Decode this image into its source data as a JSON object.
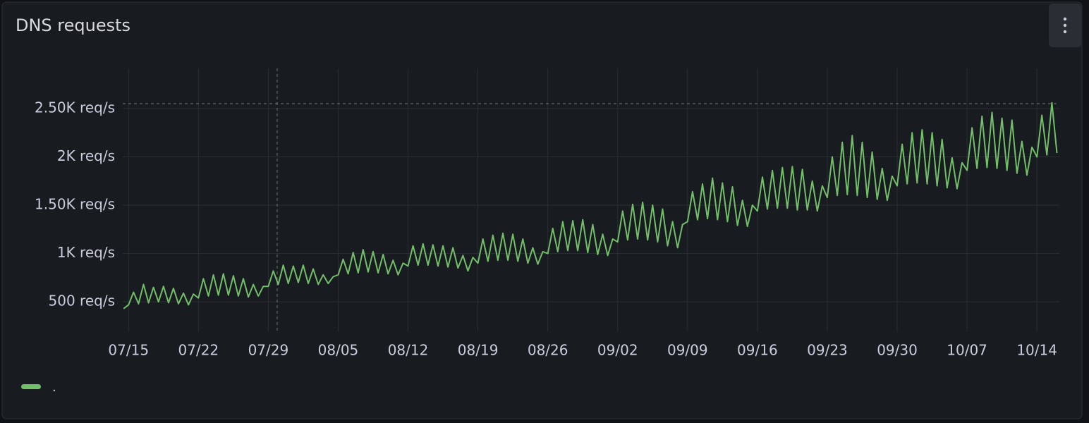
{
  "chart_data": {
    "type": "line",
    "title": "DNS requests",
    "x": [
      "07/14 12:00",
      "07/15 00:00",
      "07/15 12:00",
      "07/16 00:00",
      "07/16 12:00",
      "07/17 00:00",
      "07/17 12:00",
      "07/18 00:00",
      "07/18 12:00",
      "07/19 00:00",
      "07/19 12:00",
      "07/20 00:00",
      "07/20 12:00",
      "07/21 00:00",
      "07/21 12:00",
      "07/22 00:00",
      "07/22 12:00",
      "07/23 00:00",
      "07/23 12:00",
      "07/24 00:00",
      "07/24 12:00",
      "07/25 00:00",
      "07/25 12:00",
      "07/26 00:00",
      "07/26 12:00",
      "07/27 00:00",
      "07/27 12:00",
      "07/28 00:00",
      "07/28 12:00",
      "07/29 00:00",
      "07/29 12:00",
      "07/30 00:00",
      "07/30 12:00",
      "07/31 00:00",
      "07/31 12:00",
      "08/01 00:00",
      "08/01 12:00",
      "08/02 00:00",
      "08/02 12:00",
      "08/03 00:00",
      "08/03 12:00",
      "08/04 00:00",
      "08/04 12:00",
      "08/05 00:00",
      "08/05 12:00",
      "08/06 00:00",
      "08/06 12:00",
      "08/07 00:00",
      "08/07 12:00",
      "08/08 00:00",
      "08/08 12:00",
      "08/09 00:00",
      "08/09 12:00",
      "08/10 00:00",
      "08/10 12:00",
      "08/11 00:00",
      "08/11 12:00",
      "08/12 00:00",
      "08/12 12:00",
      "08/13 00:00",
      "08/13 12:00",
      "08/14 00:00",
      "08/14 12:00",
      "08/15 00:00",
      "08/15 12:00",
      "08/16 00:00",
      "08/16 12:00",
      "08/17 00:00",
      "08/17 12:00",
      "08/18 00:00",
      "08/18 12:00",
      "08/19 00:00",
      "08/19 12:00",
      "08/20 00:00",
      "08/20 12:00",
      "08/21 00:00",
      "08/21 12:00",
      "08/22 00:00",
      "08/22 12:00",
      "08/23 00:00",
      "08/23 12:00",
      "08/24 00:00",
      "08/24 12:00",
      "08/25 00:00",
      "08/25 12:00",
      "08/26 00:00",
      "08/26 12:00",
      "08/27 00:00",
      "08/27 12:00",
      "08/28 00:00",
      "08/28 12:00",
      "08/29 00:00",
      "08/29 12:00",
      "08/30 00:00",
      "08/30 12:00",
      "08/31 00:00",
      "08/31 12:00",
      "09/01 00:00",
      "09/01 12:00",
      "09/02 00:00",
      "09/02 12:00",
      "09/03 00:00",
      "09/03 12:00",
      "09/04 00:00",
      "09/04 12:00",
      "09/05 00:00",
      "09/05 12:00",
      "09/06 00:00",
      "09/06 12:00",
      "09/07 00:00",
      "09/07 12:00",
      "09/08 00:00",
      "09/08 12:00",
      "09/09 00:00",
      "09/09 12:00",
      "09/10 00:00",
      "09/10 12:00",
      "09/11 00:00",
      "09/11 12:00",
      "09/12 00:00",
      "09/12 12:00",
      "09/13 00:00",
      "09/13 12:00",
      "09/14 00:00",
      "09/14 12:00",
      "09/15 00:00",
      "09/15 12:00",
      "09/16 00:00",
      "09/16 12:00",
      "09/17 00:00",
      "09/17 12:00",
      "09/18 00:00",
      "09/18 12:00",
      "09/19 00:00",
      "09/19 12:00",
      "09/20 00:00",
      "09/20 12:00",
      "09/21 00:00",
      "09/21 12:00",
      "09/22 00:00",
      "09/22 12:00",
      "09/23 00:00",
      "09/23 12:00",
      "09/24 00:00",
      "09/24 12:00",
      "09/25 00:00",
      "09/25 12:00",
      "09/26 00:00",
      "09/26 12:00",
      "09/27 00:00",
      "09/27 12:00",
      "09/28 00:00",
      "09/28 12:00",
      "09/29 00:00",
      "09/29 12:00",
      "09/30 00:00",
      "09/30 12:00",
      "10/01 00:00",
      "10/01 12:00",
      "10/02 00:00",
      "10/02 12:00",
      "10/03 00:00",
      "10/03 12:00",
      "10/04 00:00",
      "10/04 12:00",
      "10/05 00:00",
      "10/05 12:00",
      "10/06 00:00",
      "10/06 12:00",
      "10/07 00:00",
      "10/07 12:00",
      "10/08 00:00",
      "10/08 12:00",
      "10/09 00:00",
      "10/09 12:00",
      "10/10 00:00",
      "10/10 12:00",
      "10/11 00:00",
      "10/11 12:00",
      "10/12 00:00",
      "10/12 12:00",
      "10/13 00:00",
      "10/13 12:00",
      "10/14 00:00",
      "10/14 12:00",
      "10/15 00:00",
      "10/15 12:00",
      "10/16 00:00"
    ],
    "series": [
      {
        "name": ".",
        "color": "#73bf69",
        "values": [
          430,
          470,
          600,
          480,
          680,
          490,
          650,
          500,
          660,
          490,
          640,
          480,
          590,
          470,
          580,
          540,
          740,
          560,
          780,
          570,
          790,
          570,
          770,
          560,
          740,
          550,
          680,
          560,
          660,
          660,
          820,
          680,
          880,
          690,
          870,
          700,
          880,
          690,
          840,
          680,
          780,
          690,
          760,
          780,
          940,
          790,
          1010,
          800,
          1040,
          810,
          1020,
          800,
          990,
          790,
          930,
          780,
          900,
          870,
          1080,
          880,
          1100,
          880,
          1090,
          870,
          1080,
          860,
          1060,
          850,
          980,
          820,
          960,
          900,
          1150,
          920,
          1190,
          930,
          1210,
          930,
          1200,
          920,
          1150,
          900,
          1060,
          890,
          1020,
          1000,
          1260,
          1020,
          1330,
          1030,
          1340,
          1030,
          1350,
          1010,
          1300,
          990,
          1200,
          980,
          1150,
          1120,
          1440,
          1140,
          1510,
          1150,
          1530,
          1140,
          1500,
          1120,
          1460,
          1080,
          1330,
          1060,
          1300,
          1330,
          1640,
          1350,
          1720,
          1360,
          1780,
          1350,
          1730,
          1330,
          1690,
          1290,
          1550,
          1280,
          1500,
          1440,
          1790,
          1460,
          1860,
          1470,
          1890,
          1470,
          1900,
          1450,
          1870,
          1450,
          1750,
          1440,
          1700,
          1580,
          2000,
          1600,
          2150,
          1610,
          2220,
          1600,
          2150,
          1580,
          2050,
          1560,
          1880,
          1550,
          1800,
          1700,
          2130,
          1720,
          2250,
          1730,
          2280,
          1720,
          2250,
          1700,
          2180,
          1680,
          1990,
          1670,
          1940,
          1860,
          2300,
          1880,
          2420,
          1890,
          2460,
          1880,
          2400,
          1860,
          2380,
          1830,
          2160,
          1810,
          2100,
          2000,
          2430,
          2020,
          2560,
          2040
        ]
      }
    ],
    "xlim": [
      "07/14 10:00",
      "10/16 06:00"
    ],
    "xticks": [
      "07/15",
      "07/22",
      "07/29",
      "08/05",
      "08/12",
      "08/19",
      "08/26",
      "09/02",
      "09/09",
      "09/16",
      "09/23",
      "09/30",
      "10/07",
      "10/14"
    ],
    "ylim": [
      195,
      2915
    ],
    "yticks": [
      {
        "value": 500,
        "label": "500 req/s"
      },
      {
        "value": 1000,
        "label": "1K req/s"
      },
      {
        "value": 1500,
        "label": "1.50K req/s"
      },
      {
        "value": 2000,
        "label": "2K req/s"
      },
      {
        "value": 2500,
        "label": "2.50K req/s"
      }
    ],
    "grid": true
  }
}
